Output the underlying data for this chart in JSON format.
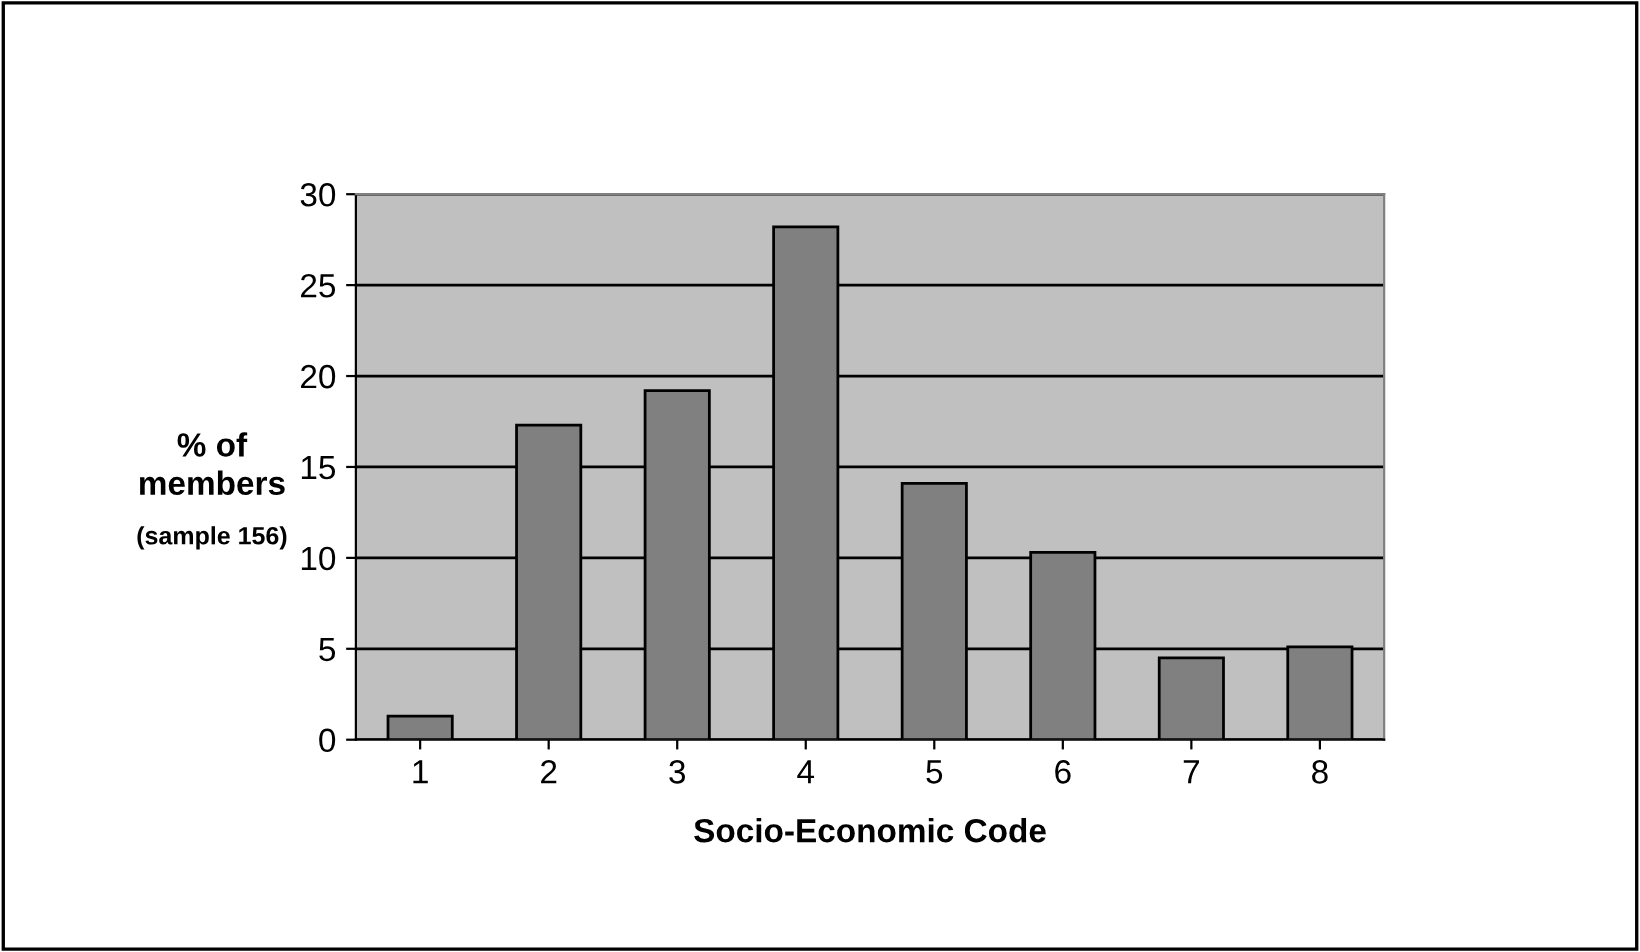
{
  "chart_data": {
    "type": "bar",
    "xlabel": "Socio-Economic Code",
    "ylabel": "% of\nmembers",
    "annotations": [
      "(sample 156)"
    ],
    "categories": [
      "1",
      "2",
      "3",
      "4",
      "5",
      "6",
      "7",
      "8"
    ],
    "values": [
      1.3,
      17.3,
      19.2,
      28.2,
      14.1,
      10.3,
      4.5,
      5.1
    ],
    "color": "#808080",
    "ylim": [
      0,
      30
    ],
    "yticks": [
      0,
      5,
      10,
      15,
      20,
      25,
      30
    ],
    "grid": "y",
    "legend": false
  }
}
